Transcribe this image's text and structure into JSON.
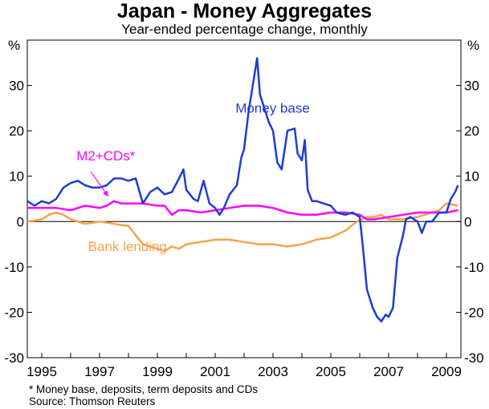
{
  "chart_data": {
    "type": "line",
    "title": "Japan - Money Aggregates",
    "subtitle": "Year-ended percentage change, monthly",
    "y_unit_left": "%",
    "y_unit_right": "%",
    "ylim": [
      -30,
      40
    ],
    "yticks": [
      -30,
      -20,
      -10,
      0,
      10,
      20,
      30
    ],
    "xlim": [
      1994.5,
      2009.5
    ],
    "xticks": [
      1995,
      1997,
      1999,
      2001,
      2003,
      2005,
      2007,
      2009
    ],
    "grid": false,
    "series": [
      {
        "name": "Money base",
        "color": "#1f3bd6",
        "points": [
          [
            1994.5,
            4.5
          ],
          [
            1994.75,
            3.5
          ],
          [
            1995.0,
            4.5
          ],
          [
            1995.25,
            4.0
          ],
          [
            1995.5,
            5.0
          ],
          [
            1995.75,
            7.5
          ],
          [
            1996.0,
            8.5
          ],
          [
            1996.25,
            9.0
          ],
          [
            1996.5,
            8.0
          ],
          [
            1996.75,
            7.5
          ],
          [
            1997.0,
            7.5
          ],
          [
            1997.25,
            8.0
          ],
          [
            1997.5,
            9.5
          ],
          [
            1997.75,
            9.5
          ],
          [
            1998.0,
            9.0
          ],
          [
            1998.25,
            9.5
          ],
          [
            1998.5,
            4.0
          ],
          [
            1998.75,
            6.5
          ],
          [
            1999.0,
            7.5
          ],
          [
            1999.25,
            6.0
          ],
          [
            1999.5,
            6.5
          ],
          [
            1999.75,
            9.5
          ],
          [
            1999.9,
            11.5
          ],
          [
            2000.0,
            7.0
          ],
          [
            2000.25,
            5.0
          ],
          [
            2000.4,
            4.5
          ],
          [
            2000.6,
            9.0
          ],
          [
            2000.8,
            4.0
          ],
          [
            2001.0,
            3.0
          ],
          [
            2001.15,
            1.5
          ],
          [
            2001.3,
            3.0
          ],
          [
            2001.5,
            6.0
          ],
          [
            2001.75,
            8.0
          ],
          [
            2001.9,
            14.0
          ],
          [
            2002.0,
            16.0
          ],
          [
            2002.15,
            24.0
          ],
          [
            2002.3,
            30.0
          ],
          [
            2002.45,
            36.0
          ],
          [
            2002.55,
            28.0
          ],
          [
            2002.7,
            25.0
          ],
          [
            2002.85,
            22.0
          ],
          [
            2003.0,
            20.0
          ],
          [
            2003.15,
            13.0
          ],
          [
            2003.3,
            11.5
          ],
          [
            2003.5,
            20.0
          ],
          [
            2003.75,
            20.5
          ],
          [
            2003.85,
            15.0
          ],
          [
            2004.0,
            13.5
          ],
          [
            2004.1,
            18.0
          ],
          [
            2004.2,
            7.0
          ],
          [
            2004.35,
            4.5
          ],
          [
            2004.5,
            4.5
          ],
          [
            2004.75,
            4.0
          ],
          [
            2005.0,
            3.5
          ],
          [
            2005.2,
            2.0
          ],
          [
            2005.5,
            1.5
          ],
          [
            2005.75,
            2.0
          ],
          [
            2006.0,
            1.0
          ],
          [
            2006.1,
            -5.0
          ],
          [
            2006.25,
            -15.0
          ],
          [
            2006.45,
            -19.0
          ],
          [
            2006.6,
            -21.0
          ],
          [
            2006.75,
            -22.0
          ],
          [
            2006.9,
            -20.5
          ],
          [
            2007.0,
            -21.0
          ],
          [
            2007.15,
            -19.0
          ],
          [
            2007.3,
            -8.0
          ],
          [
            2007.5,
            -3.0
          ],
          [
            2007.6,
            0.5
          ],
          [
            2007.75,
            1.0
          ],
          [
            2008.0,
            0.0
          ],
          [
            2008.15,
            -2.5
          ],
          [
            2008.3,
            0.0
          ],
          [
            2008.5,
            0.0
          ],
          [
            2008.75,
            2.0
          ],
          [
            2009.0,
            2.0
          ],
          [
            2009.15,
            5.0
          ],
          [
            2009.3,
            6.5
          ],
          [
            2009.4,
            8.0
          ]
        ]
      },
      {
        "name": "M2+CDs*",
        "color": "#ff00ff",
        "points": [
          [
            1994.5,
            3.0
          ],
          [
            1995.0,
            3.0
          ],
          [
            1995.5,
            3.0
          ],
          [
            1996.0,
            2.5
          ],
          [
            1996.5,
            3.5
          ],
          [
            1997.0,
            3.0
          ],
          [
            1997.25,
            3.5
          ],
          [
            1997.5,
            4.5
          ],
          [
            1997.75,
            4.0
          ],
          [
            1998.0,
            4.0
          ],
          [
            1998.5,
            4.0
          ],
          [
            1999.0,
            3.5
          ],
          [
            1999.25,
            3.5
          ],
          [
            1999.5,
            1.5
          ],
          [
            1999.75,
            2.5
          ],
          [
            2000.0,
            2.5
          ],
          [
            2000.5,
            2.0
          ],
          [
            2001.0,
            2.5
          ],
          [
            2001.5,
            3.0
          ],
          [
            2002.0,
            3.5
          ],
          [
            2002.5,
            3.5
          ],
          [
            2003.0,
            3.0
          ],
          [
            2003.5,
            2.0
          ],
          [
            2004.0,
            1.5
          ],
          [
            2004.5,
            1.5
          ],
          [
            2005.0,
            2.0
          ],
          [
            2005.5,
            2.0
          ],
          [
            2006.0,
            1.5
          ],
          [
            2006.25,
            0.5
          ],
          [
            2006.5,
            0.5
          ],
          [
            2007.0,
            1.0
          ],
          [
            2007.5,
            1.5
          ],
          [
            2008.0,
            2.0
          ],
          [
            2008.5,
            2.0
          ],
          [
            2009.0,
            2.0
          ],
          [
            2009.4,
            2.5
          ]
        ]
      },
      {
        "name": "Bank lending",
        "color": "#f7a34a",
        "points": [
          [
            1994.5,
            0.0
          ],
          [
            1995.0,
            0.5
          ],
          [
            1995.25,
            1.5
          ],
          [
            1995.5,
            2.0
          ],
          [
            1995.75,
            1.5
          ],
          [
            1996.0,
            0.5
          ],
          [
            1996.5,
            -0.5
          ],
          [
            1997.0,
            0.0
          ],
          [
            1997.5,
            -0.5
          ],
          [
            1998.0,
            -1.0
          ],
          [
            1998.25,
            -3.0
          ],
          [
            1998.5,
            -5.0
          ],
          [
            1998.75,
            -5.5
          ],
          [
            1999.0,
            -6.0
          ],
          [
            1999.25,
            -6.5
          ],
          [
            1999.5,
            -5.5
          ],
          [
            1999.75,
            -6.0
          ],
          [
            2000.0,
            -5.0
          ],
          [
            2000.5,
            -4.5
          ],
          [
            2001.0,
            -4.0
          ],
          [
            2001.5,
            -4.0
          ],
          [
            2002.0,
            -4.5
          ],
          [
            2002.5,
            -5.0
          ],
          [
            2003.0,
            -5.0
          ],
          [
            2003.5,
            -5.5
          ],
          [
            2004.0,
            -5.0
          ],
          [
            2004.5,
            -4.0
          ],
          [
            2005.0,
            -3.5
          ],
          [
            2005.5,
            -2.0
          ],
          [
            2005.9,
            0.0
          ],
          [
            2006.25,
            1.0
          ],
          [
            2006.5,
            1.0
          ],
          [
            2006.75,
            1.5
          ],
          [
            2007.0,
            0.5
          ],
          [
            2007.5,
            0.5
          ],
          [
            2008.0,
            1.0
          ],
          [
            2008.5,
            2.0
          ],
          [
            2008.75,
            2.5
          ],
          [
            2009.0,
            4.0
          ],
          [
            2009.4,
            3.5
          ]
        ]
      }
    ],
    "annotations": [
      {
        "text": "Money base",
        "series": "Money base",
        "x": 2001.7,
        "y": 24
      },
      {
        "text": "M2+CDs*",
        "series": "M2+CDs*",
        "x": 1996.2,
        "y": 13.5
      },
      {
        "text": "Bank lending",
        "series": "Bank lending",
        "x": 1996.6,
        "y": -6.5
      }
    ],
    "arrow": {
      "from": [
        1996.7,
        11.0
      ],
      "to": [
        1997.3,
        5.5
      ]
    },
    "footnote": "*   Money base, deposits, term deposits and CDs",
    "source": "Source: Thomson Reuters"
  }
}
